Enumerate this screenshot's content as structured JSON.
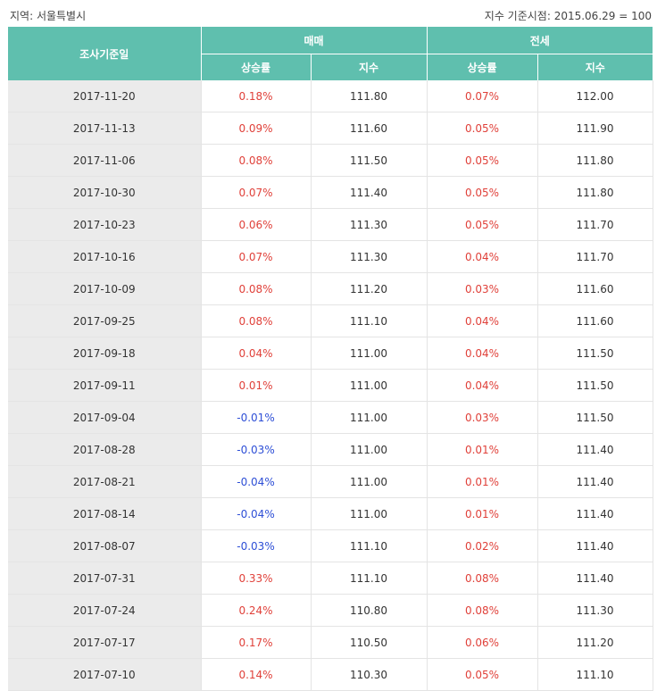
{
  "header": {
    "region": "지역: 서울특별시",
    "base": "지수 기준시점: 2015.06.29 = 100"
  },
  "columns": {
    "date": "조사기준일",
    "sale": "매매",
    "jeonse": "전세",
    "rate": "상승률",
    "index": "지수"
  },
  "colors": {
    "header_bg": "#5fbfae",
    "up": "#e0413a",
    "down": "#2e4fd6",
    "date_bg": "#ebebeb"
  },
  "rows": [
    {
      "date": "2017-11-20",
      "sale_rate": "0.18%",
      "sale_index": "111.80",
      "jeonse_rate": "0.07%",
      "jeonse_index": "112.00"
    },
    {
      "date": "2017-11-13",
      "sale_rate": "0.09%",
      "sale_index": "111.60",
      "jeonse_rate": "0.05%",
      "jeonse_index": "111.90"
    },
    {
      "date": "2017-11-06",
      "sale_rate": "0.08%",
      "sale_index": "111.50",
      "jeonse_rate": "0.05%",
      "jeonse_index": "111.80"
    },
    {
      "date": "2017-10-30",
      "sale_rate": "0.07%",
      "sale_index": "111.40",
      "jeonse_rate": "0.05%",
      "jeonse_index": "111.80"
    },
    {
      "date": "2017-10-23",
      "sale_rate": "0.06%",
      "sale_index": "111.30",
      "jeonse_rate": "0.05%",
      "jeonse_index": "111.70"
    },
    {
      "date": "2017-10-16",
      "sale_rate": "0.07%",
      "sale_index": "111.30",
      "jeonse_rate": "0.04%",
      "jeonse_index": "111.70"
    },
    {
      "date": "2017-10-09",
      "sale_rate": "0.08%",
      "sale_index": "111.20",
      "jeonse_rate": "0.03%",
      "jeonse_index": "111.60"
    },
    {
      "date": "2017-09-25",
      "sale_rate": "0.08%",
      "sale_index": "111.10",
      "jeonse_rate": "0.04%",
      "jeonse_index": "111.60"
    },
    {
      "date": "2017-09-18",
      "sale_rate": "0.04%",
      "sale_index": "111.00",
      "jeonse_rate": "0.04%",
      "jeonse_index": "111.50"
    },
    {
      "date": "2017-09-11",
      "sale_rate": "0.01%",
      "sale_index": "111.00",
      "jeonse_rate": "0.04%",
      "jeonse_index": "111.50"
    },
    {
      "date": "2017-09-04",
      "sale_rate": "-0.01%",
      "sale_index": "111.00",
      "jeonse_rate": "0.03%",
      "jeonse_index": "111.50"
    },
    {
      "date": "2017-08-28",
      "sale_rate": "-0.03%",
      "sale_index": "111.00",
      "jeonse_rate": "0.01%",
      "jeonse_index": "111.40"
    },
    {
      "date": "2017-08-21",
      "sale_rate": "-0.04%",
      "sale_index": "111.00",
      "jeonse_rate": "0.01%",
      "jeonse_index": "111.40"
    },
    {
      "date": "2017-08-14",
      "sale_rate": "-0.04%",
      "sale_index": "111.00",
      "jeonse_rate": "0.01%",
      "jeonse_index": "111.40"
    },
    {
      "date": "2017-08-07",
      "sale_rate": "-0.03%",
      "sale_index": "111.10",
      "jeonse_rate": "0.02%",
      "jeonse_index": "111.40"
    },
    {
      "date": "2017-07-31",
      "sale_rate": "0.33%",
      "sale_index": "111.10",
      "jeonse_rate": "0.08%",
      "jeonse_index": "111.40"
    },
    {
      "date": "2017-07-24",
      "sale_rate": "0.24%",
      "sale_index": "110.80",
      "jeonse_rate": "0.08%",
      "jeonse_index": "111.30"
    },
    {
      "date": "2017-07-17",
      "sale_rate": "0.17%",
      "sale_index": "110.50",
      "jeonse_rate": "0.06%",
      "jeonse_index": "111.20"
    },
    {
      "date": "2017-07-10",
      "sale_rate": "0.14%",
      "sale_index": "110.30",
      "jeonse_rate": "0.05%",
      "jeonse_index": "111.10"
    }
  ]
}
